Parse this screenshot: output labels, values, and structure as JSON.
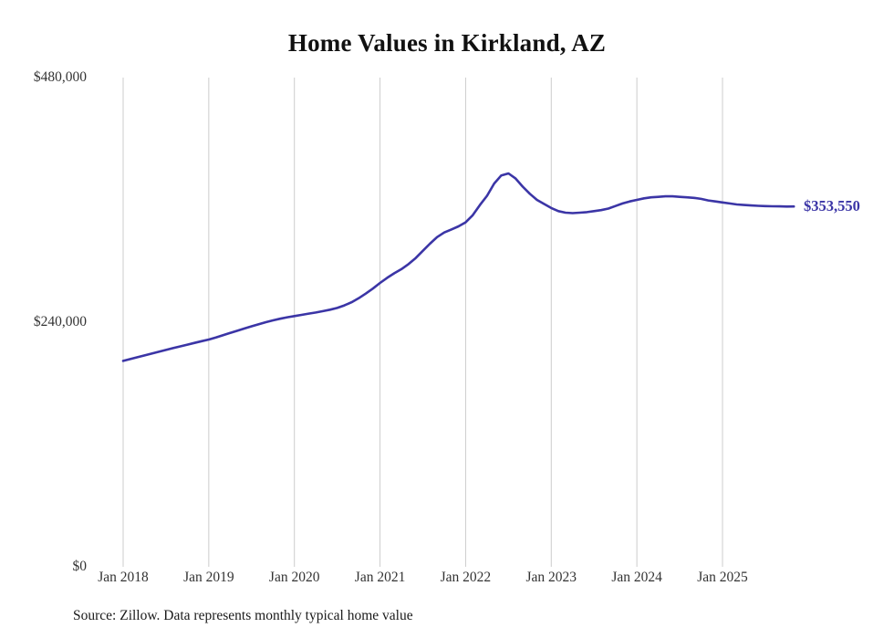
{
  "chart": {
    "title": "Home Values in Kirkland, AZ",
    "source_note": "Source: Zillow. Data represents monthly typical home value"
  },
  "colors": {
    "line": "#3b35a6",
    "grid": "#cccccc",
    "tick_text": "#333333",
    "title_text": "#111111",
    "end_label": "#3b35a6"
  },
  "chart_data": {
    "type": "line",
    "title": "Home Values in Kirkland, AZ",
    "x_start": "2018-01",
    "x_interval": "month",
    "xticks": [
      "Jan 2018",
      "Jan 2019",
      "Jan 2020",
      "Jan 2021",
      "Jan 2022",
      "Jan 2023",
      "Jan 2024",
      "Jan 2025"
    ],
    "yticks": [
      {
        "value": 480000,
        "label": "$480,000"
      },
      {
        "value": 240000,
        "label": "$240,000"
      },
      {
        "value": 0,
        "label": "$0"
      }
    ],
    "ylim": [
      0,
      480000
    ],
    "grid": "vertical",
    "legend": "none",
    "end_label": "$353,550",
    "end_value": 353550,
    "series": [
      {
        "name": "Typical home value",
        "values": [
          202000,
          203800,
          205600,
          207400,
          209200,
          211000,
          212800,
          214600,
          216300,
          218000,
          219700,
          221400,
          223000,
          225000,
          227200,
          229400,
          231600,
          233800,
          236000,
          238000,
          240000,
          241800,
          243400,
          244800,
          246000,
          247200,
          248400,
          249500,
          250800,
          252300,
          254000,
          256500,
          259500,
          263500,
          268000,
          273000,
          278500,
          283500,
          288000,
          292000,
          297000,
          303000,
          310000,
          317000,
          323500,
          328000,
          331000,
          334000,
          338000,
          345000,
          355000,
          364000,
          376000,
          384000,
          386000,
          381000,
          373000,
          366000,
          360000,
          356000,
          352000,
          349000,
          347500,
          347000,
          347500,
          348000,
          349000,
          350000,
          351500,
          354000,
          356500,
          358500,
          360000,
          361500,
          362500,
          363000,
          363500,
          363500,
          363000,
          362500,
          362000,
          361000,
          359500,
          358500,
          357500,
          356500,
          355500,
          355000,
          354500,
          354200,
          353900,
          353700,
          353600,
          353500,
          353550
        ]
      }
    ]
  }
}
